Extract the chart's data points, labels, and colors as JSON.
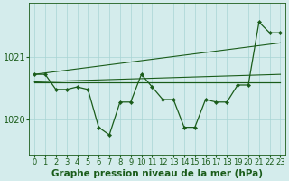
{
  "background_color": "#d4ecec",
  "grid_color": "#a8d4d4",
  "line_color": "#1a5c1a",
  "title": "Graphe pression niveau de la mer (hPa)",
  "ylabel_fontsize": 7,
  "xlabel_fontsize": 6.0,
  "title_fontsize": 7.5,
  "x_labels": [
    "0",
    "1",
    "2",
    "3",
    "4",
    "5",
    "6",
    "7",
    "8",
    "9",
    "10",
    "11",
    "12",
    "13",
    "14",
    "15",
    "16",
    "17",
    "18",
    "19",
    "20",
    "21",
    "22",
    "23"
  ],
  "yticks": [
    1020,
    1021
  ],
  "ylim": [
    1019.45,
    1021.85
  ],
  "xlim": [
    -0.5,
    23.5
  ],
  "main_y": [
    1020.72,
    1020.72,
    1020.48,
    1020.48,
    1020.52,
    1020.48,
    1019.88,
    1019.76,
    1020.28,
    1020.28,
    1020.72,
    1020.52,
    1020.32,
    1020.32,
    1019.88,
    1019.88,
    1020.32,
    1020.28,
    1020.28,
    1020.55,
    1020.55,
    1021.55,
    1021.38,
    1021.38
  ],
  "trend_lines": [
    {
      "x": [
        0,
        23
      ],
      "y": [
        1020.6,
        1020.6
      ]
    },
    {
      "x": [
        0,
        23
      ],
      "y": [
        1020.72,
        1021.22
      ]
    },
    {
      "x": [
        0,
        23
      ],
      "y": [
        1020.6,
        1020.6
      ]
    },
    {
      "x": [
        0,
        23
      ],
      "y": [
        1020.6,
        1020.72
      ]
    }
  ]
}
